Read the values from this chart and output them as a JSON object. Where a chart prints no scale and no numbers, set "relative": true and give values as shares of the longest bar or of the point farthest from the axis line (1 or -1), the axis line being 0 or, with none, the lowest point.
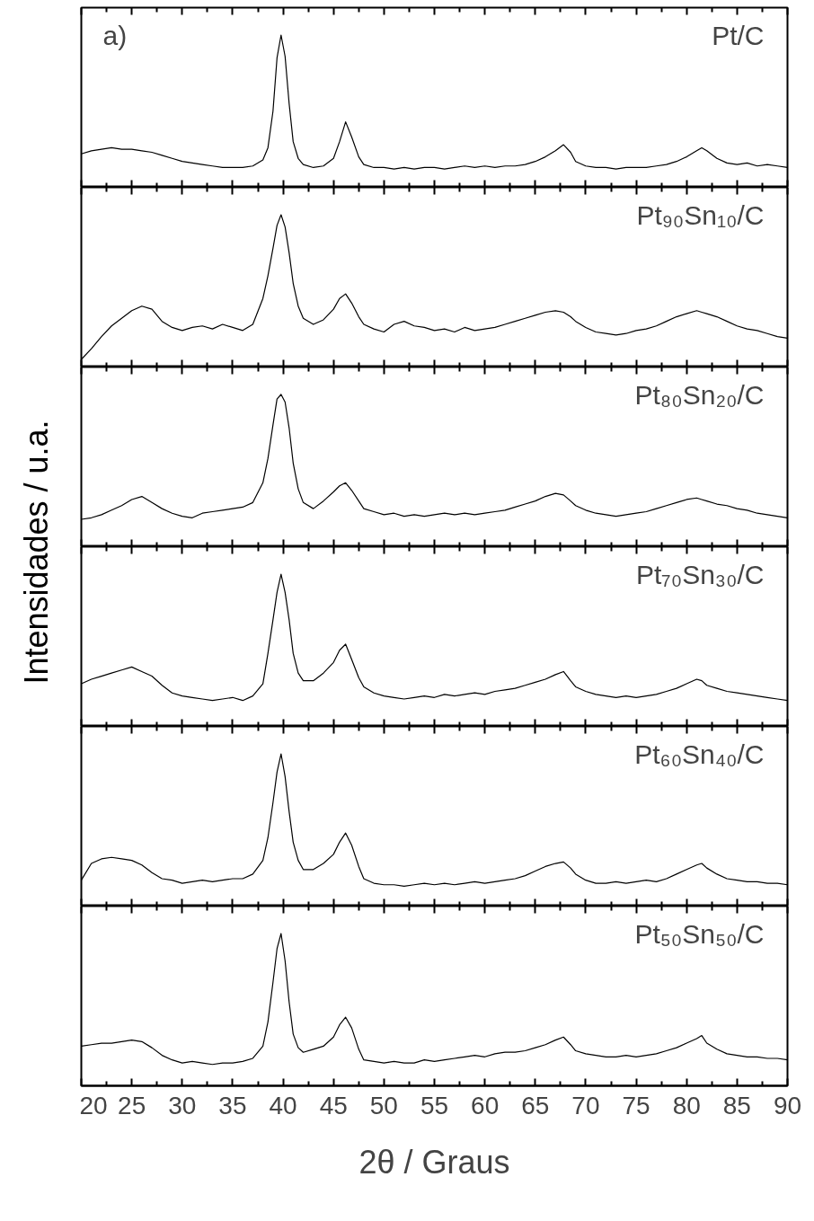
{
  "chart_data": [
    {
      "type": "line",
      "relative": true,
      "annotations": [
        "a)",
        "Pt/C"
      ],
      "xlim": [
        20,
        90
      ],
      "xticks": [
        20,
        25,
        30,
        35,
        40,
        45,
        50,
        55,
        60,
        65,
        70,
        75,
        80,
        85,
        90
      ],
      "tick_labels": false,
      "x": [
        20,
        21,
        22,
        23,
        24,
        25,
        26,
        27,
        28,
        29,
        30,
        31,
        32,
        33,
        34,
        35,
        36,
        37,
        38,
        38.5,
        39,
        39.4,
        39.8,
        40.2,
        40.6,
        41,
        41.5,
        42,
        43,
        44,
        45,
        45.6,
        46.2,
        46.8,
        47.5,
        48,
        49,
        50,
        51,
        52,
        53,
        54,
        55,
        56,
        57,
        58,
        59,
        60,
        61,
        62,
        63,
        64,
        65,
        66,
        67,
        67.8,
        68.5,
        69,
        70,
        71,
        72,
        73,
        74,
        75,
        76,
        77,
        78,
        79,
        80,
        81,
        81.5,
        82,
        83,
        84,
        85,
        86,
        87,
        88,
        89,
        90
      ],
      "series": [
        {
          "color": "#000000",
          "values": [
            0.22,
            0.24,
            0.25,
            0.26,
            0.25,
            0.25,
            0.24,
            0.23,
            0.21,
            0.19,
            0.17,
            0.16,
            0.15,
            0.14,
            0.13,
            0.13,
            0.13,
            0.14,
            0.18,
            0.26,
            0.5,
            0.85,
            1.0,
            0.86,
            0.55,
            0.3,
            0.19,
            0.15,
            0.13,
            0.14,
            0.19,
            0.3,
            0.43,
            0.33,
            0.2,
            0.15,
            0.13,
            0.13,
            0.12,
            0.13,
            0.12,
            0.13,
            0.13,
            0.12,
            0.13,
            0.14,
            0.13,
            0.14,
            0.13,
            0.14,
            0.14,
            0.15,
            0.17,
            0.2,
            0.24,
            0.28,
            0.23,
            0.17,
            0.14,
            0.13,
            0.13,
            0.12,
            0.13,
            0.13,
            0.13,
            0.14,
            0.15,
            0.17,
            0.2,
            0.24,
            0.26,
            0.24,
            0.19,
            0.16,
            0.15,
            0.16,
            0.14,
            0.15,
            0.14,
            0.13
          ]
        }
      ]
    },
    {
      "type": "line",
      "relative": true,
      "annotations": [
        "Pt₉₀Sn₁₀/C"
      ],
      "xlim": [
        20,
        90
      ],
      "xticks": [
        20,
        25,
        30,
        35,
        40,
        45,
        50,
        55,
        60,
        65,
        70,
        75,
        80,
        85,
        90
      ],
      "tick_labels": false,
      "x": [
        20,
        21,
        22,
        23,
        24,
        25,
        26,
        27,
        28,
        29,
        30,
        31,
        32,
        33,
        34,
        35,
        36,
        37,
        38,
        38.5,
        39,
        39.4,
        39.8,
        40.2,
        40.6,
        41,
        41.5,
        42,
        43,
        44,
        45,
        45.6,
        46.2,
        46.8,
        47.5,
        48,
        49,
        50,
        51,
        52,
        53,
        54,
        55,
        56,
        57,
        58,
        59,
        60,
        61,
        62,
        63,
        64,
        65,
        66,
        67,
        67.8,
        68.5,
        69,
        70,
        71,
        72,
        73,
        74,
        75,
        76,
        77,
        78,
        79,
        80,
        81,
        81.5,
        82,
        83,
        84,
        85,
        86,
        87,
        88,
        89,
        90
      ],
      "series": [
        {
          "color": "#000000",
          "values": [
            0.05,
            0.12,
            0.2,
            0.27,
            0.32,
            0.37,
            0.4,
            0.38,
            0.3,
            0.26,
            0.24,
            0.26,
            0.27,
            0.25,
            0.28,
            0.26,
            0.24,
            0.28,
            0.45,
            0.6,
            0.78,
            0.93,
            1.0,
            0.92,
            0.75,
            0.55,
            0.4,
            0.32,
            0.28,
            0.31,
            0.38,
            0.45,
            0.48,
            0.42,
            0.33,
            0.28,
            0.25,
            0.23,
            0.28,
            0.3,
            0.27,
            0.26,
            0.24,
            0.25,
            0.23,
            0.26,
            0.24,
            0.25,
            0.26,
            0.28,
            0.3,
            0.32,
            0.34,
            0.36,
            0.37,
            0.36,
            0.33,
            0.3,
            0.26,
            0.23,
            0.22,
            0.21,
            0.22,
            0.24,
            0.25,
            0.27,
            0.3,
            0.33,
            0.35,
            0.37,
            0.36,
            0.35,
            0.33,
            0.3,
            0.27,
            0.25,
            0.24,
            0.22,
            0.2,
            0.19
          ]
        }
      ]
    },
    {
      "type": "line",
      "relative": true,
      "annotations": [
        "Pt₈₀Sn₂₀/C"
      ],
      "xlim": [
        20,
        90
      ],
      "xticks": [
        20,
        25,
        30,
        35,
        40,
        45,
        50,
        55,
        60,
        65,
        70,
        75,
        80,
        85,
        90
      ],
      "tick_labels": false,
      "x": [
        20,
        21,
        22,
        23,
        24,
        25,
        26,
        27,
        28,
        29,
        30,
        31,
        32,
        33,
        34,
        35,
        36,
        37,
        38,
        38.5,
        39,
        39.4,
        39.8,
        40.2,
        40.6,
        41,
        41.5,
        42,
        43,
        44,
        45,
        45.6,
        46.2,
        46.8,
        47.5,
        48,
        49,
        50,
        51,
        52,
        53,
        54,
        55,
        56,
        57,
        58,
        59,
        60,
        61,
        62,
        63,
        64,
        65,
        66,
        67,
        67.8,
        68.5,
        69,
        70,
        71,
        72,
        73,
        74,
        75,
        76,
        77,
        78,
        79,
        80,
        81,
        81.5,
        82,
        83,
        84,
        85,
        86,
        87,
        88,
        89,
        90
      ],
      "series": [
        {
          "color": "#000000",
          "values": [
            0.18,
            0.19,
            0.21,
            0.24,
            0.27,
            0.31,
            0.33,
            0.29,
            0.25,
            0.22,
            0.2,
            0.19,
            0.22,
            0.23,
            0.24,
            0.25,
            0.26,
            0.29,
            0.42,
            0.58,
            0.8,
            0.97,
            1.0,
            0.95,
            0.78,
            0.55,
            0.38,
            0.29,
            0.25,
            0.3,
            0.36,
            0.4,
            0.42,
            0.37,
            0.3,
            0.25,
            0.23,
            0.21,
            0.22,
            0.2,
            0.21,
            0.2,
            0.21,
            0.22,
            0.21,
            0.22,
            0.21,
            0.22,
            0.23,
            0.24,
            0.26,
            0.28,
            0.3,
            0.33,
            0.35,
            0.34,
            0.3,
            0.27,
            0.24,
            0.22,
            0.21,
            0.2,
            0.21,
            0.22,
            0.23,
            0.25,
            0.27,
            0.29,
            0.31,
            0.32,
            0.31,
            0.3,
            0.28,
            0.27,
            0.25,
            0.24,
            0.22,
            0.21,
            0.2,
            0.19
          ]
        }
      ]
    },
    {
      "type": "line",
      "relative": true,
      "ylabel": "Intensidades / u.a.",
      "annotations": [
        "Pt₇₀Sn₃₀/C"
      ],
      "xlim": [
        20,
        90
      ],
      "xticks": [
        20,
        25,
        30,
        35,
        40,
        45,
        50,
        55,
        60,
        65,
        70,
        75,
        80,
        85,
        90
      ],
      "tick_labels": false,
      "x": [
        20,
        21,
        22,
        23,
        24,
        25,
        26,
        27,
        28,
        29,
        30,
        31,
        32,
        33,
        34,
        35,
        36,
        37,
        38,
        38.5,
        39,
        39.4,
        39.8,
        40.2,
        40.6,
        41,
        41.5,
        42,
        43,
        44,
        45,
        45.6,
        46.2,
        46.8,
        47.5,
        48,
        49,
        50,
        51,
        52,
        53,
        54,
        55,
        56,
        57,
        58,
        59,
        60,
        61,
        62,
        63,
        64,
        65,
        66,
        67,
        67.8,
        68.5,
        69,
        70,
        71,
        72,
        73,
        74,
        75,
        76,
        77,
        78,
        79,
        80,
        81,
        81.5,
        82,
        83,
        84,
        85,
        86,
        87,
        88,
        89,
        90
      ],
      "series": [
        {
          "color": "#000000",
          "values": [
            0.28,
            0.31,
            0.33,
            0.35,
            0.37,
            0.39,
            0.36,
            0.33,
            0.27,
            0.22,
            0.2,
            0.19,
            0.18,
            0.17,
            0.18,
            0.19,
            0.17,
            0.2,
            0.28,
            0.48,
            0.7,
            0.88,
            1.0,
            0.88,
            0.7,
            0.48,
            0.35,
            0.3,
            0.3,
            0.35,
            0.42,
            0.5,
            0.54,
            0.44,
            0.32,
            0.26,
            0.22,
            0.2,
            0.19,
            0.18,
            0.19,
            0.2,
            0.19,
            0.21,
            0.2,
            0.21,
            0.22,
            0.21,
            0.23,
            0.24,
            0.25,
            0.27,
            0.29,
            0.31,
            0.34,
            0.36,
            0.3,
            0.26,
            0.23,
            0.21,
            0.2,
            0.19,
            0.2,
            0.19,
            0.2,
            0.21,
            0.23,
            0.25,
            0.28,
            0.31,
            0.3,
            0.27,
            0.25,
            0.23,
            0.22,
            0.21,
            0.2,
            0.19,
            0.18,
            0.17
          ]
        }
      ]
    },
    {
      "type": "line",
      "relative": true,
      "annotations": [
        "Pt₆₀Sn₄₀/C"
      ],
      "xlim": [
        20,
        90
      ],
      "xticks": [
        20,
        25,
        30,
        35,
        40,
        45,
        50,
        55,
        60,
        65,
        70,
        75,
        80,
        85,
        90
      ],
      "tick_labels": false,
      "x": [
        20,
        21,
        22,
        23,
        24,
        25,
        26,
        27,
        28,
        29,
        30,
        31,
        32,
        33,
        34,
        35,
        36,
        37,
        38,
        38.5,
        39,
        39.4,
        39.8,
        40.2,
        40.6,
        41,
        41.5,
        42,
        43,
        44,
        45,
        45.6,
        46.2,
        46.8,
        47.5,
        48,
        49,
        50,
        51,
        52,
        53,
        54,
        55,
        56,
        57,
        58,
        59,
        60,
        61,
        62,
        63,
        64,
        65,
        66,
        67,
        67.8,
        68.5,
        69,
        70,
        71,
        72,
        73,
        74,
        75,
        76,
        77,
        78,
        79,
        80,
        81,
        81.5,
        82,
        83,
        84,
        85,
        86,
        87,
        88,
        89,
        90
      ],
      "series": [
        {
          "color": "#000000",
          "values": [
            0.17,
            0.28,
            0.31,
            0.32,
            0.31,
            0.3,
            0.27,
            0.22,
            0.18,
            0.17,
            0.15,
            0.16,
            0.17,
            0.16,
            0.17,
            0.18,
            0.18,
            0.21,
            0.3,
            0.45,
            0.68,
            0.88,
            1.0,
            0.85,
            0.62,
            0.42,
            0.3,
            0.24,
            0.24,
            0.28,
            0.34,
            0.42,
            0.48,
            0.4,
            0.26,
            0.18,
            0.15,
            0.14,
            0.14,
            0.13,
            0.14,
            0.15,
            0.14,
            0.15,
            0.14,
            0.15,
            0.16,
            0.15,
            0.16,
            0.17,
            0.18,
            0.2,
            0.23,
            0.26,
            0.28,
            0.29,
            0.25,
            0.21,
            0.17,
            0.15,
            0.15,
            0.16,
            0.15,
            0.16,
            0.17,
            0.16,
            0.18,
            0.21,
            0.24,
            0.27,
            0.28,
            0.25,
            0.21,
            0.18,
            0.17,
            0.16,
            0.16,
            0.15,
            0.15,
            0.14
          ]
        }
      ]
    },
    {
      "type": "line",
      "relative": true,
      "annotations": [
        "Pt₅₀Sn₅₀/C"
      ],
      "xlabel": "2θ / Graus",
      "xlim": [
        20,
        90
      ],
      "xticks": [
        20,
        25,
        30,
        35,
        40,
        45,
        50,
        55,
        60,
        65,
        70,
        75,
        80,
        85,
        90
      ],
      "tick_labels": "x",
      "x": [
        20,
        21,
        22,
        23,
        24,
        25,
        26,
        27,
        28,
        29,
        30,
        31,
        32,
        33,
        34,
        35,
        36,
        37,
        38,
        38.5,
        39,
        39.4,
        39.8,
        40.2,
        40.6,
        41,
        41.5,
        42,
        43,
        44,
        45,
        45.6,
        46.2,
        46.8,
        47.5,
        48,
        49,
        50,
        51,
        52,
        53,
        54,
        55,
        56,
        57,
        58,
        59,
        60,
        61,
        62,
        63,
        64,
        65,
        66,
        67,
        67.8,
        68.5,
        69,
        70,
        71,
        72,
        73,
        74,
        75,
        76,
        77,
        78,
        79,
        80,
        81,
        81.5,
        82,
        83,
        84,
        85,
        86,
        87,
        88,
        89,
        90
      ],
      "series": [
        {
          "color": "#000000",
          "values": [
            0.26,
            0.27,
            0.28,
            0.28,
            0.29,
            0.3,
            0.29,
            0.25,
            0.2,
            0.17,
            0.15,
            0.16,
            0.15,
            0.14,
            0.15,
            0.15,
            0.16,
            0.18,
            0.26,
            0.42,
            0.68,
            0.9,
            1.0,
            0.82,
            0.55,
            0.34,
            0.25,
            0.22,
            0.24,
            0.26,
            0.32,
            0.4,
            0.45,
            0.38,
            0.24,
            0.17,
            0.16,
            0.15,
            0.16,
            0.15,
            0.15,
            0.17,
            0.16,
            0.17,
            0.18,
            0.19,
            0.2,
            0.19,
            0.21,
            0.22,
            0.22,
            0.23,
            0.25,
            0.27,
            0.3,
            0.32,
            0.27,
            0.23,
            0.21,
            0.2,
            0.19,
            0.19,
            0.2,
            0.19,
            0.2,
            0.21,
            0.23,
            0.25,
            0.28,
            0.31,
            0.33,
            0.28,
            0.24,
            0.21,
            0.2,
            0.19,
            0.19,
            0.18,
            0.18,
            0.17
          ]
        }
      ]
    }
  ]
}
